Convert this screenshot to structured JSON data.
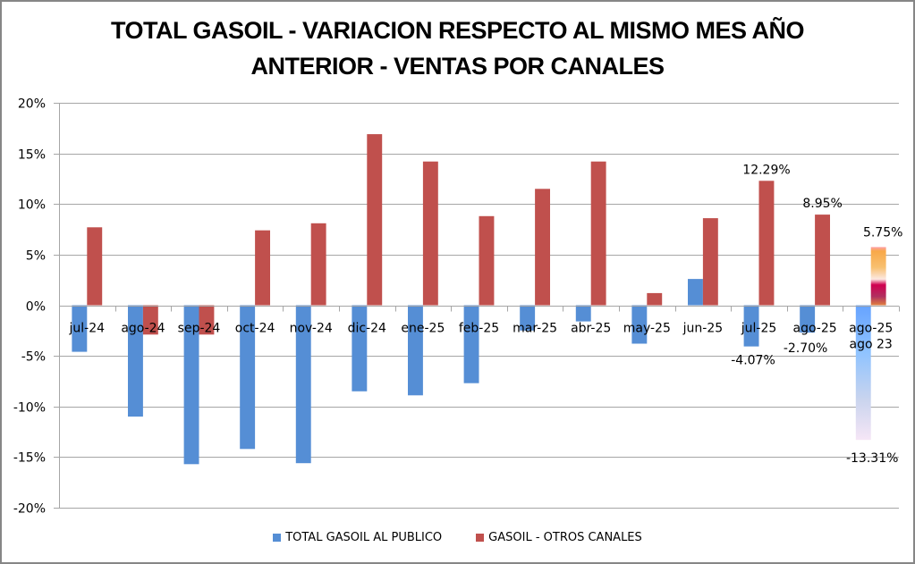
{
  "chart_data": {
    "type": "bar",
    "title_lines": [
      "TOTAL GASOIL - VARIACION RESPECTO AL MISMO MES AÑO",
      "ANTERIOR - VENTAS POR CANALES"
    ],
    "categories": [
      [
        "jul-24"
      ],
      [
        "ago-24"
      ],
      [
        "sep-24"
      ],
      [
        "oct-24"
      ],
      [
        "nov-24"
      ],
      [
        "dic-24"
      ],
      [
        "ene-25"
      ],
      [
        "feb-25"
      ],
      [
        "mar-25"
      ],
      [
        "abr-25"
      ],
      [
        "may-25"
      ],
      [
        "jun-25"
      ],
      [
        "jul-25"
      ],
      [
        "ago-25"
      ],
      [
        "ago-25",
        "ago 23"
      ]
    ],
    "series": [
      {
        "name": "TOTAL GASOIL AL PUBLICO",
        "color": "#558ED5",
        "values": [
          -4.6,
          -11.0,
          -15.7,
          -14.2,
          -15.6,
          -8.5,
          -8.9,
          -7.7,
          -2.5,
          -1.6,
          -3.8,
          2.6,
          -4.07,
          -2.7,
          -13.31
        ],
        "data_labels": {
          "12": "-4.07%",
          "13": "-2.70%",
          "14": "-13.31%"
        }
      },
      {
        "name": "GASOIL - OTROS CANALES",
        "color": "#C0504D",
        "values": [
          7.7,
          -2.9,
          -2.9,
          7.4,
          8.1,
          16.9,
          14.2,
          8.8,
          11.5,
          14.2,
          1.2,
          8.6,
          12.29,
          8.95,
          5.75
        ],
        "data_labels": {
          "12": "12.29%",
          "13": "8.95%",
          "14": "5.75%"
        }
      }
    ],
    "ylim": [
      -20,
      20
    ],
    "yticks": [
      20,
      15,
      10,
      5,
      0,
      -5,
      -10,
      -15,
      -20
    ],
    "ytick_labels": [
      "20%",
      "15%",
      "10%",
      "5%",
      "0%",
      "-5%",
      "-10%",
      "-15%",
      "-20%"
    ],
    "grid": true,
    "legend_position": "bottom",
    "xlabel": "",
    "ylabel": ""
  }
}
